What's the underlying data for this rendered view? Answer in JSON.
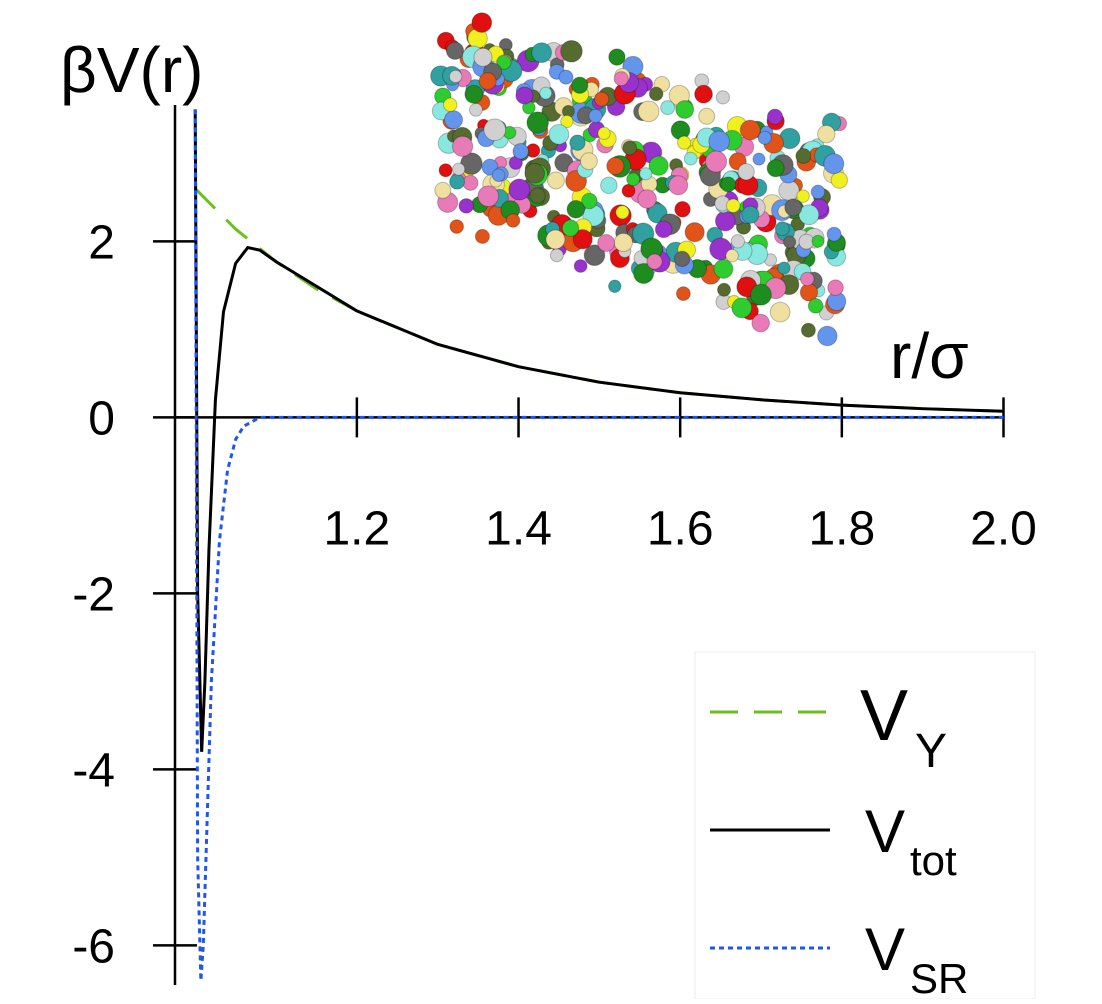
{
  "chart_data": {
    "type": "line",
    "y_label": "βV(r)",
    "x_label": "r/σ",
    "xlim": [
      0.975,
      2.0
    ],
    "ylim": [
      -6.45,
      3.55
    ],
    "xticks": [
      1.2,
      1.4,
      1.6,
      1.8,
      {
        "value": 2.0,
        "label": "2.0"
      }
    ],
    "yticks": [
      -6,
      -4,
      -2,
      0,
      2
    ],
    "legend": "lower right",
    "series": [
      {
        "name": "V",
        "name_sub": "Y",
        "color": "#6cbf1f",
        "style": "dashed",
        "x": [
          1.0,
          1.05,
          1.1,
          1.15,
          1.2,
          1.3,
          1.4,
          1.5,
          1.6,
          1.7,
          1.8,
          1.9,
          2.0
        ],
        "values": [
          2.6,
          2.14,
          1.77,
          1.46,
          1.21,
          0.83,
          0.576,
          0.4,
          0.28,
          0.2,
          0.14,
          0.099,
          0.07
        ]
      },
      {
        "name": "V",
        "name_sub": "tot",
        "color": "#000000",
        "style": "solid",
        "x": [
          1.0,
          1.003,
          1.008,
          1.012,
          1.017,
          1.025,
          1.035,
          1.05,
          1.065,
          1.08,
          1.1,
          1.2,
          1.3,
          1.4,
          1.5,
          1.6,
          1.7,
          1.8,
          1.9,
          2.0
        ],
        "values": [
          3.5,
          -2.0,
          -3.8,
          -3.0,
          -1.5,
          0.2,
          1.2,
          1.75,
          1.93,
          1.9,
          1.77,
          1.21,
          0.83,
          0.576,
          0.4,
          0.28,
          0.2,
          0.14,
          0.099,
          0.07
        ]
      },
      {
        "name": "V",
        "name_sub": "SR",
        "color": "#2255ee",
        "style": "dotted",
        "x": [
          1.0,
          1.003,
          1.007,
          1.01,
          1.015,
          1.02,
          1.03,
          1.04,
          1.05,
          1.06,
          1.08,
          1.2,
          2.0
        ],
        "values": [
          3.5,
          -5.0,
          -6.4,
          -6.0,
          -4.5,
          -3.0,
          -1.4,
          -0.6,
          -0.25,
          -0.1,
          0,
          0,
          0
        ]
      }
    ]
  }
}
